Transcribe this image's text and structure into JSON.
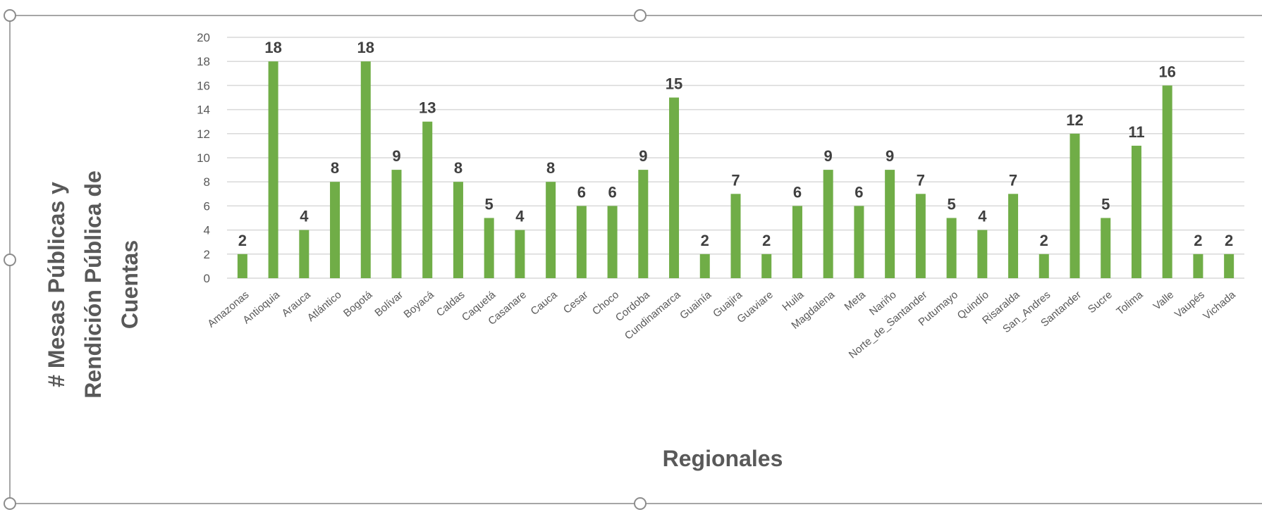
{
  "chart_data": {
    "type": "bar",
    "categories": [
      "Amazonas",
      "Antioquia",
      "Arauca",
      "Atlántico",
      "Bogotá",
      "Bolívar",
      "Boyacá",
      "Caldas",
      "Caquetá",
      "Casanare",
      "Cauca",
      "Cesar",
      "Choco",
      "Cordoba",
      "Cundinamarca",
      "Guainía",
      "Guajira",
      "Guaviare",
      "Huila",
      "Magdalena",
      "Meta",
      "Nariño",
      "Norte_de_Santander",
      "Putumayo",
      "Quindío",
      "Risaralda",
      "San_Andres",
      "Santander",
      "Sucre",
      "Tolima",
      "Valle",
      "Vaupés",
      "Vichada"
    ],
    "values": [
      2,
      18,
      4,
      8,
      18,
      9,
      13,
      8,
      5,
      4,
      8,
      6,
      6,
      9,
      15,
      2,
      7,
      2,
      6,
      9,
      6,
      9,
      7,
      5,
      4,
      7,
      2,
      12,
      5,
      11,
      16,
      2,
      2
    ],
    "xlabel": "Regionales",
    "ylabel_lines": [
      "# Mesas Públicas y",
      "Rendición Pública de",
      "Cuentas"
    ],
    "ylim": [
      0,
      20
    ],
    "yticks": [
      0,
      2,
      4,
      6,
      8,
      10,
      12,
      14,
      16,
      18,
      20
    ],
    "grid": true,
    "legend": "none",
    "bar_color": "#70ad47",
    "grid_color": "#d9d9d9"
  }
}
